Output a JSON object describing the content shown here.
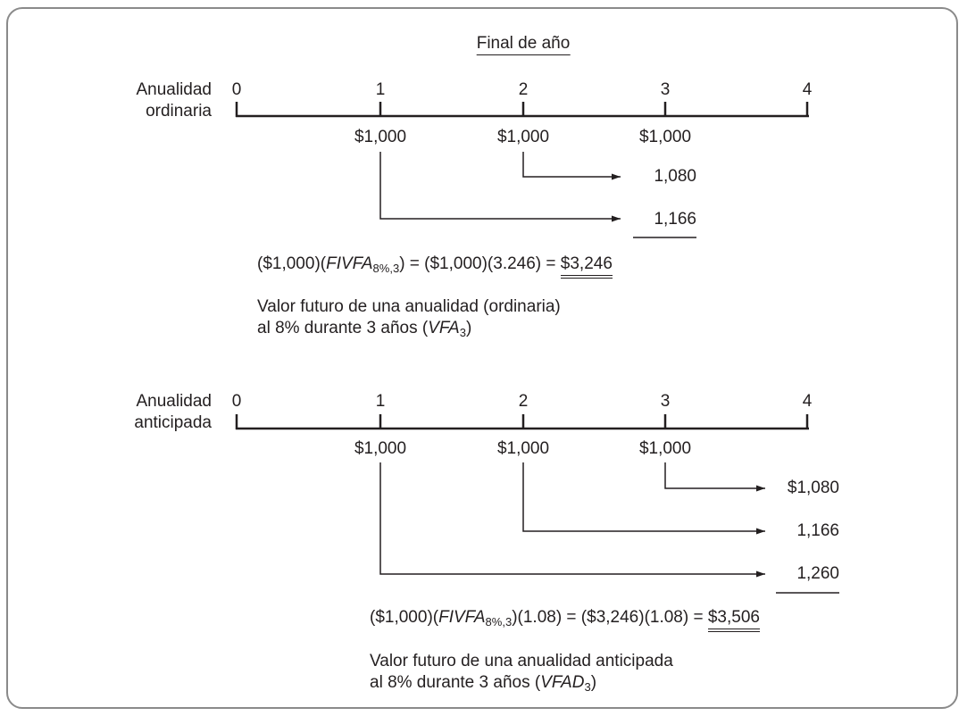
{
  "header": "Final de año",
  "ordinary": {
    "label_line1": "Anualidad",
    "label_line2": "ordinaria",
    "ticks": [
      "0",
      "1",
      "2",
      "3",
      "4"
    ],
    "payments": [
      "$1,000",
      "$1,000",
      "$1,000"
    ],
    "compounded": [
      "1,080",
      "1,166"
    ],
    "formula": {
      "part1": "($1,000)(",
      "fn": "FIVFA",
      "fn_sub": "8%,3",
      "part2": ") = ($1,000)(3.246) = ",
      "result": "$3,246"
    },
    "caption_line1": "Valor futuro de una anualidad (ordinaria)",
    "caption_line2_prefix": "al 8% durante 3 años (",
    "caption_symbol": "VFA",
    "caption_symbol_sub": "3",
    "caption_suffix": ")"
  },
  "due": {
    "label_line1": "Anualidad",
    "label_line2": "anticipada",
    "ticks": [
      "0",
      "1",
      "2",
      "3",
      "4"
    ],
    "payments": [
      "$1,000",
      "$1,000",
      "$1,000"
    ],
    "compounded": [
      "$1,080",
      "1,166",
      "1,260"
    ],
    "formula": {
      "part1": "($1,000)(",
      "fn": "FIVFA",
      "fn_sub": "8%,3",
      "part2": ")(1.08) = ($3,246)(1.08) = ",
      "result": "$3,506"
    },
    "caption_line1": "Valor futuro de una anualidad anticipada",
    "caption_line2_prefix": "al 8% durante 3 años (",
    "caption_symbol": "VFAD",
    "caption_symbol_sub": "3",
    "caption_suffix": ")"
  },
  "colors": {
    "ink": "#231f20",
    "frame": "#8a8a8a"
  }
}
